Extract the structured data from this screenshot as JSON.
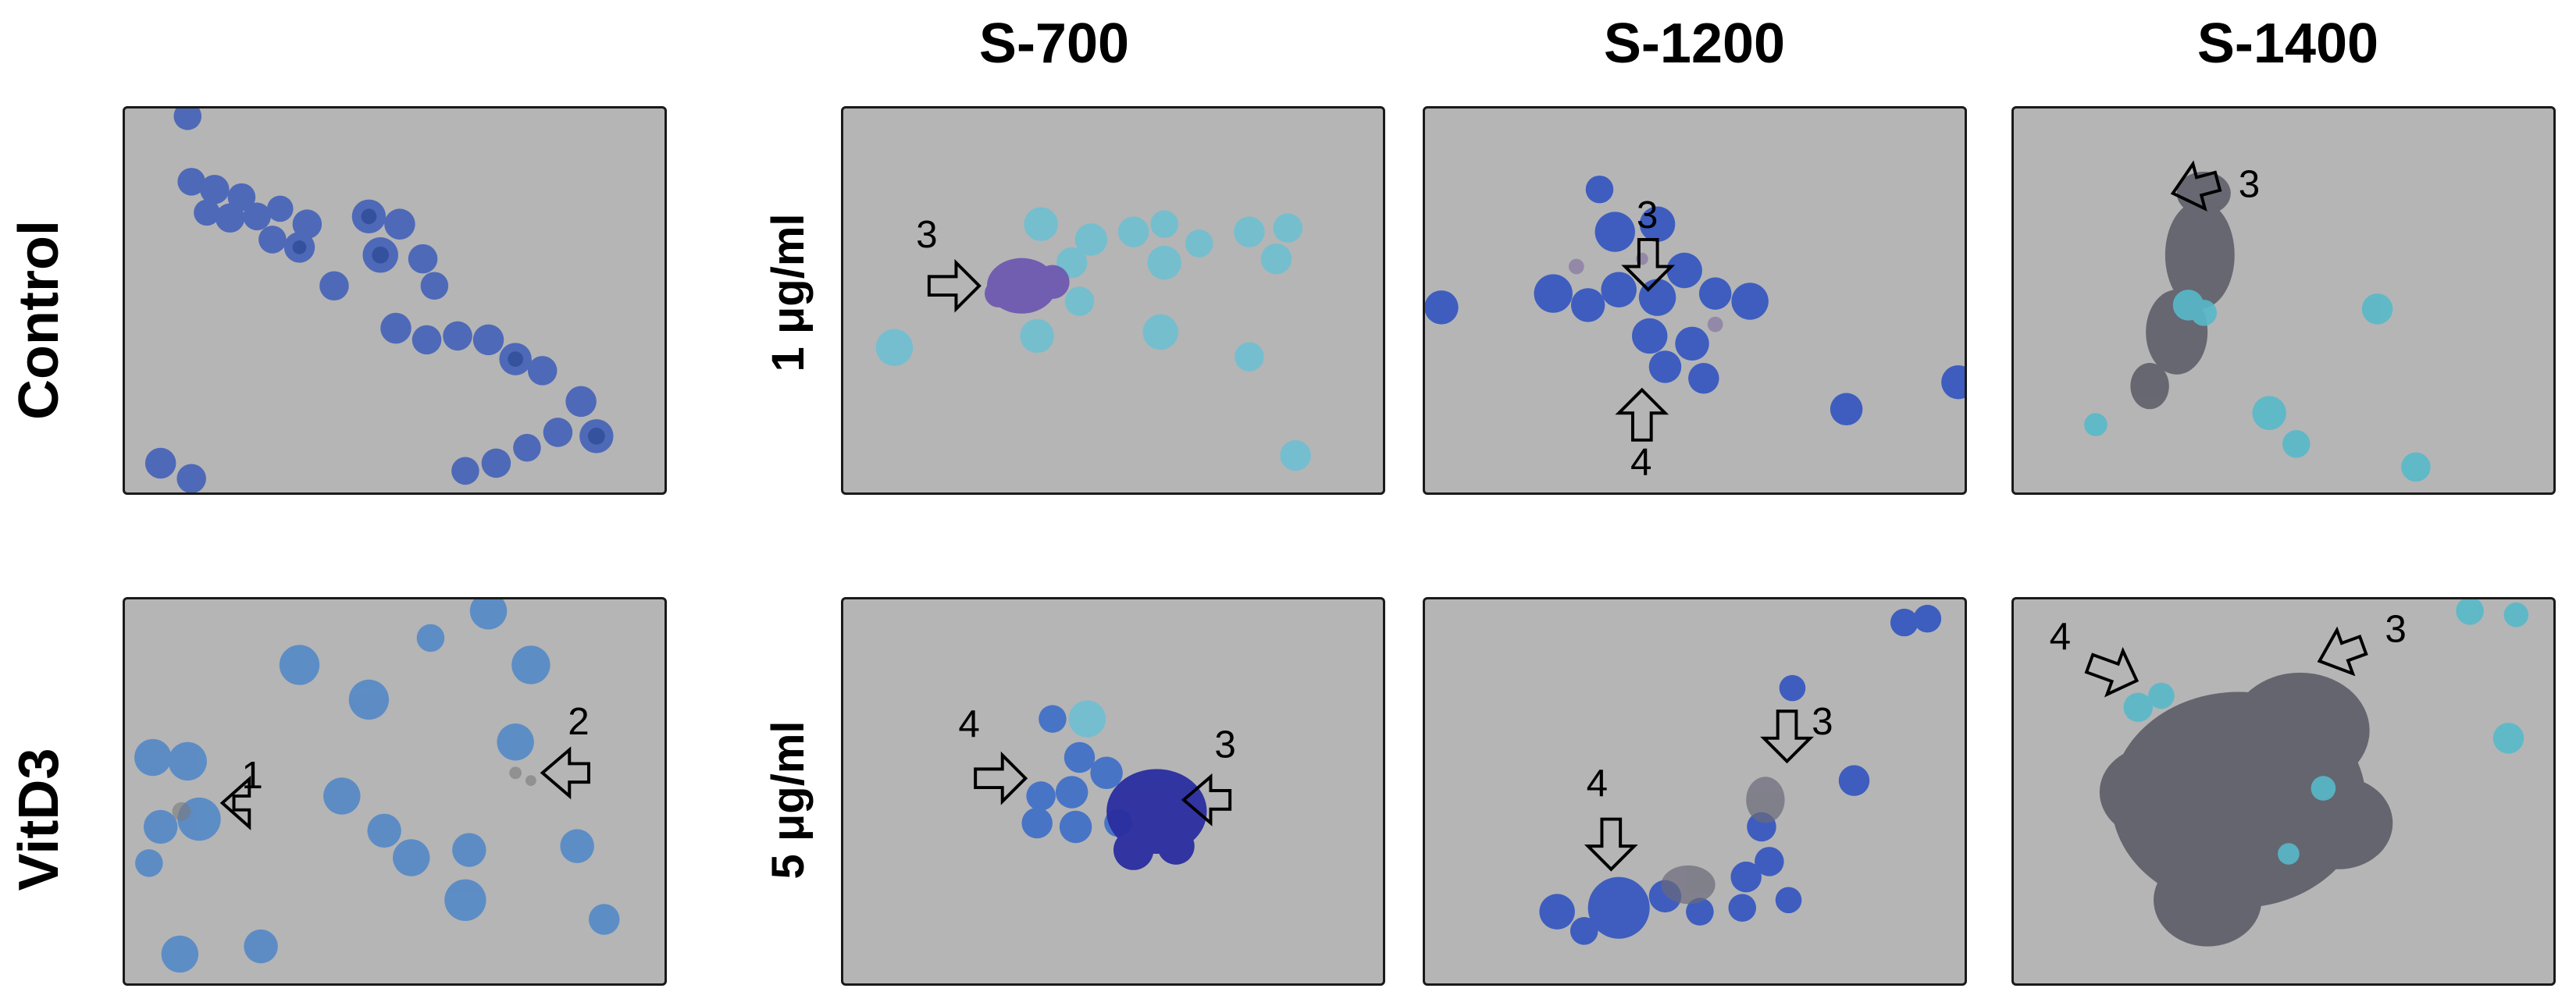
{
  "column_headers": [
    "S-700",
    "S-1200",
    "S-1400"
  ],
  "row_labels": [
    "Control",
    "VitD3"
  ],
  "concentration_labels": [
    "1 μg/ml",
    "5 μg/ml"
  ],
  "arrow_labels": {
    "vitd3": [
      "1",
      "2"
    ],
    "s700_1": [
      "3"
    ],
    "s1200_1": [
      "3",
      "4"
    ],
    "s1400_1": [
      "3"
    ],
    "s700_5": [
      "4",
      "3"
    ],
    "s1200_5": [
      "4",
      "3"
    ],
    "s1400_5": [
      "4",
      "3"
    ]
  },
  "colors": {
    "background": "#b5b5b5",
    "cell_dark_blue": "#3d5cb8",
    "cell_light_blue": "#6fb6d4",
    "cell_cyan": "#57b9c9",
    "aggregate_purple": "#6b55b0",
    "aggregate_gray": "#5a5a66"
  }
}
